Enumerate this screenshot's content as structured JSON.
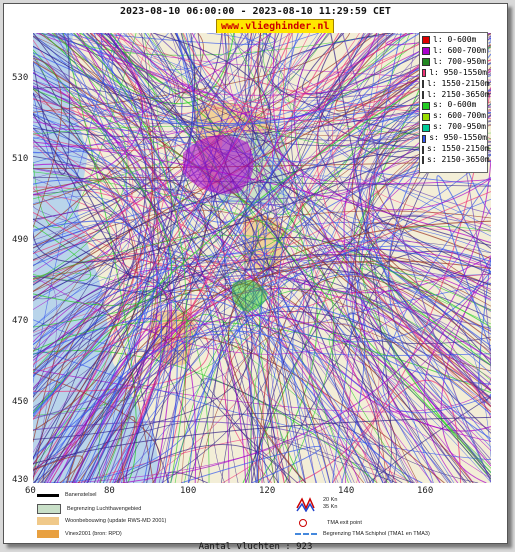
{
  "title": "2023-08-10 06:00:00 - 2023-08-10 11:29:59 CET",
  "site": "www.vlieghinder.nl",
  "axes": {
    "y_ticks": [
      "530",
      "510",
      "490",
      "470",
      "450",
      "430"
    ],
    "x_ticks": [
      "60",
      "80",
      "100",
      "120",
      "140",
      "160"
    ]
  },
  "legend": [
    {
      "label": "l: 0-600m",
      "color": "#dd0000"
    },
    {
      "label": "l: 600-700m",
      "color": "#aa00cc"
    },
    {
      "label": "l: 700-950m",
      "color": "#228822"
    },
    {
      "label": "l: 950-1550m",
      "color": "#ee3377"
    },
    {
      "label": "l: 1550-2150m",
      "color": "#cc2244"
    },
    {
      "label": "l: 2150-3650m",
      "color": "#993322"
    },
    {
      "label": "s: 0-600m",
      "color": "#22cc22"
    },
    {
      "label": "s: 600-700m",
      "color": "#99dd00"
    },
    {
      "label": "s: 700-950m",
      "color": "#00cc99"
    },
    {
      "label": "s: 950-1550m",
      "color": "#3355ee"
    },
    {
      "label": "s: 1550-2150m",
      "color": "#6644bb"
    },
    {
      "label": "s: 2150-3650m",
      "color": "#332288"
    }
  ],
  "map_legend": {
    "runways": "Banenstelsel",
    "airport_boundary": "Begrenzing Luchthavengebied",
    "residential": "Woonbebouwing (update RWS-MD 2001)",
    "vinex": "Vinex2001 (bron: RPD)",
    "wind_20": "20 Kn",
    "wind_35": "35 Kn",
    "tma_exit": "TMA exit point",
    "tma_boundary": "Begrenzing TMA Schiphol  (TMA1 en TMA3)"
  },
  "footer": "Aantal vluchten : 923",
  "colors": {
    "sea": "#b9d4ea",
    "land": "#f3eed7",
    "urban": "#f0c98a",
    "airport": "#c9e0c8"
  }
}
